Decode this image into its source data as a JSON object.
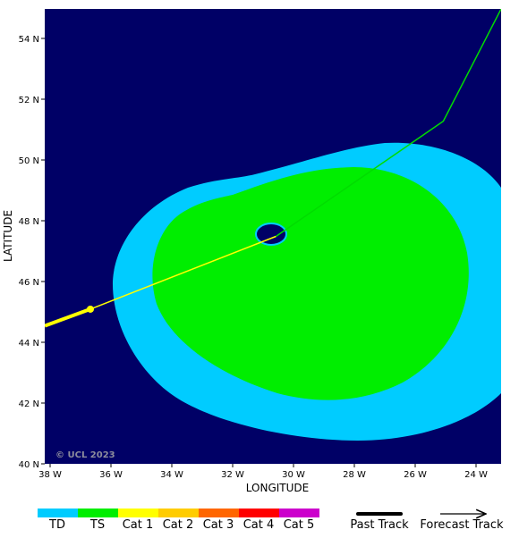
{
  "map": {
    "xlabel": "LONGITUDE",
    "ylabel": "LATITUDE",
    "x_ticks": [
      "38 W",
      "36 W",
      "34 W",
      "32 W",
      "30 W",
      "28 W",
      "26 W",
      "24 W"
    ],
    "y_ticks": [
      "40 N",
      "42 N",
      "44 N",
      "46 N",
      "48 N",
      "50 N",
      "52 N",
      "54 N"
    ],
    "lon_range": [
      38.2,
      23.2
    ],
    "lat_range": [
      40,
      55
    ],
    "watermark": "© UCL 2023",
    "colors": {
      "background": "#000066",
      "td": "#00ccff",
      "ts": "#00ee00",
      "past_track": "#ffff00",
      "forecast_track": "#00dd00",
      "eye": "#00ccff"
    }
  },
  "chart_data": {
    "type": "map",
    "past_track": [
      {
        "lon": 38.2,
        "lat": 44.55
      },
      {
        "lon": 36.7,
        "lat": 45.1
      },
      {
        "lon": 30.6,
        "lat": 47.5
      }
    ],
    "forecast_track": [
      {
        "lon": 30.6,
        "lat": 47.5
      },
      {
        "lon": 25.1,
        "lat": 51.3
      },
      {
        "lon": 23.2,
        "lat": 55.0
      }
    ],
    "current_position": {
      "lon": 36.7,
      "lat": 45.1
    },
    "storm_center": {
      "lon": 30.8,
      "lat": 47.6
    }
  },
  "legend": {
    "categories": [
      {
        "label": "TD",
        "color": "#00ccff"
      },
      {
        "label": "TS",
        "color": "#00ee00"
      },
      {
        "label": "Cat 1",
        "color": "#ffff00"
      },
      {
        "label": "Cat 2",
        "color": "#ffcc00"
      },
      {
        "label": "Cat 3",
        "color": "#ff6600"
      },
      {
        "label": "Cat 4",
        "color": "#ff0000"
      },
      {
        "label": "Cat 5",
        "color": "#cc00cc"
      }
    ],
    "past_track_label": "Past Track",
    "forecast_track_label": "Forecast Track"
  }
}
